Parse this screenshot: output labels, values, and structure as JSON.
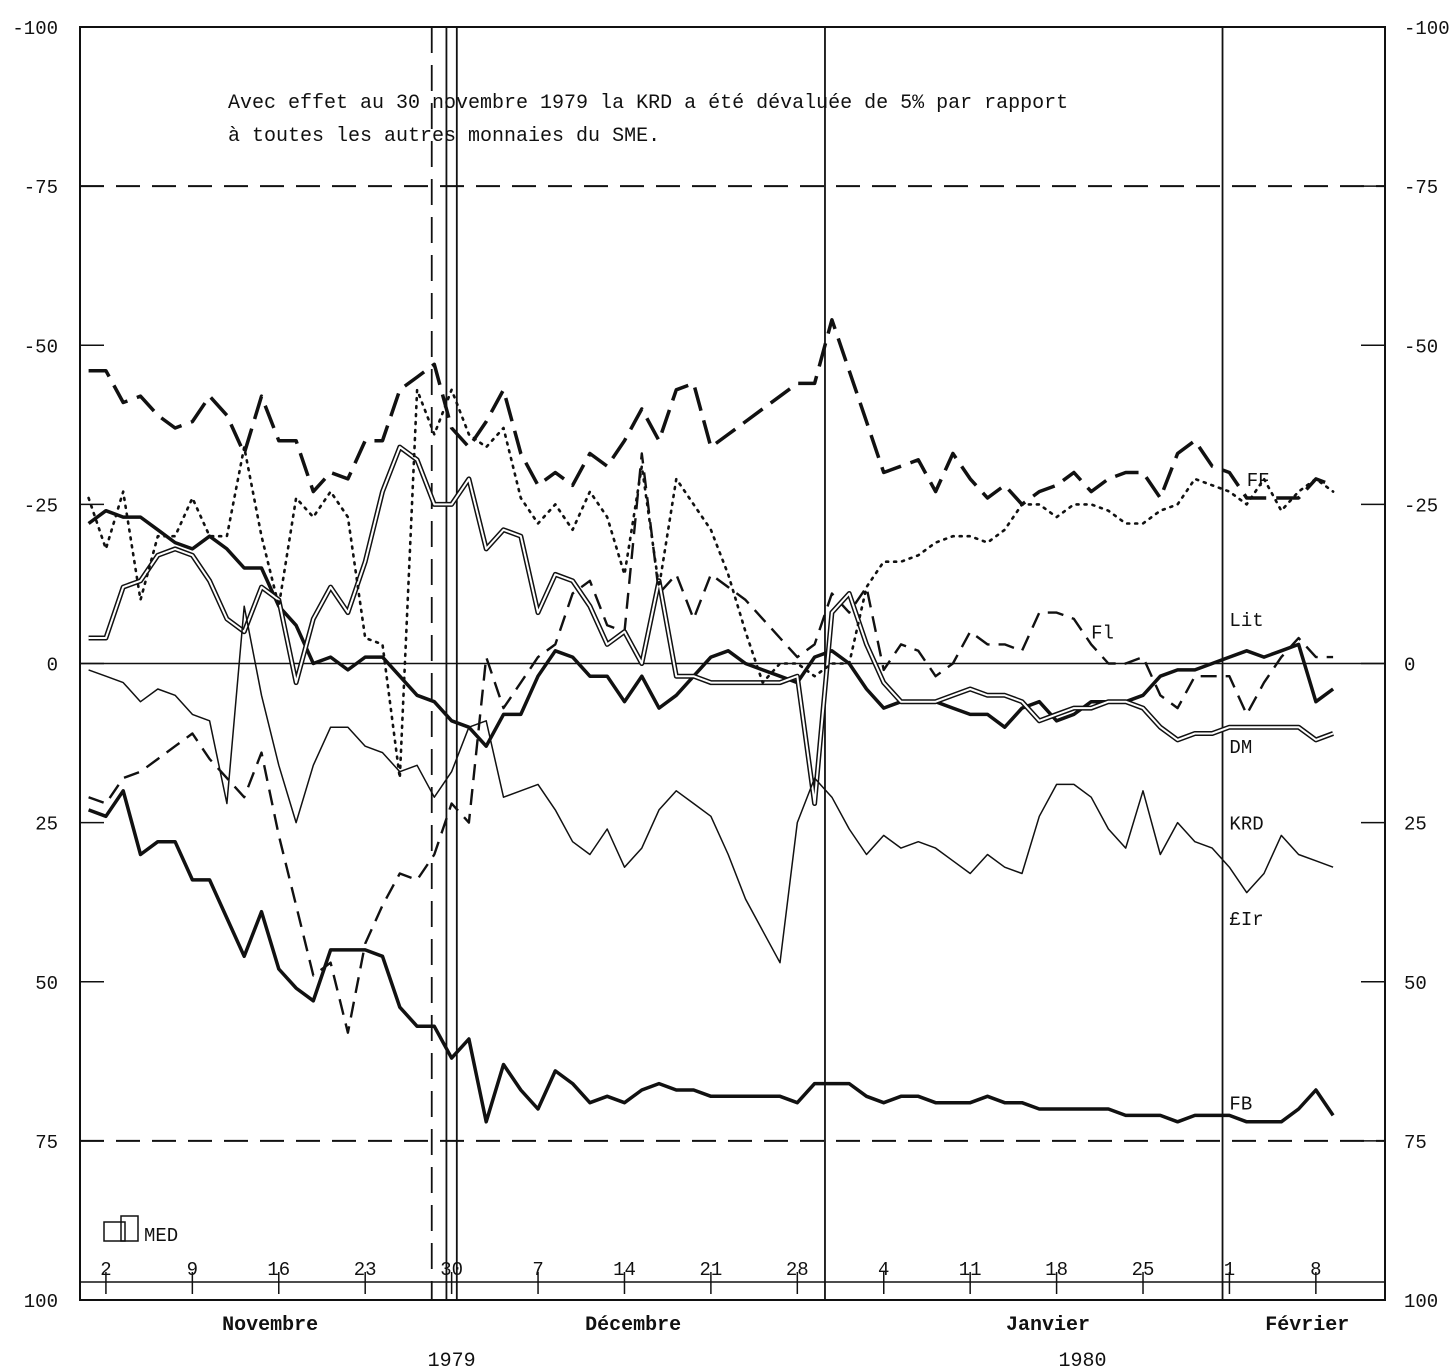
{
  "chart_data": {
    "type": "line",
    "annotation": [
      "Avec effet au 30 novembre 1979 la KRD a été dévaluée de 5% par rapport",
      "à toutes les autres monnaies du SME."
    ],
    "yaxis": {
      "ylim": [
        -100,
        100
      ],
      "inverted": true,
      "ticks": [
        -100,
        -75,
        -50,
        -25,
        0,
        25,
        50,
        75,
        100
      ],
      "tick_labels": [
        "-100",
        "-75",
        "-50",
        "-25",
        "0",
        "25",
        "50",
        "75",
        "100"
      ]
    },
    "xaxis": {
      "xlim": [
        -0.5,
        75
      ],
      "day_ticks": [
        {
          "x": 1,
          "label": "2"
        },
        {
          "x": 6,
          "label": "9"
        },
        {
          "x": 11,
          "label": "16"
        },
        {
          "x": 16,
          "label": "23"
        },
        {
          "x": 21,
          "label": "30"
        },
        {
          "x": 26,
          "label": "7"
        },
        {
          "x": 31,
          "label": "14"
        },
        {
          "x": 36,
          "label": "21"
        },
        {
          "x": 41,
          "label": "28"
        },
        {
          "x": 46,
          "label": "4"
        },
        {
          "x": 51,
          "label": "11"
        },
        {
          "x": 56,
          "label": "18"
        },
        {
          "x": 61,
          "label": "25"
        },
        {
          "x": 66,
          "label": "1"
        },
        {
          "x": 71,
          "label": "8"
        }
      ],
      "months": [
        {
          "label": "Novembre",
          "x": 10.5
        },
        {
          "label": "Décembre",
          "x": 31.5
        },
        {
          "label": "Janvier",
          "x": 55.5
        },
        {
          "label": "Février",
          "x": 70.5
        }
      ],
      "years": [
        {
          "label": "1979",
          "x": 21
        },
        {
          "label": "1980",
          "x": 57.5
        }
      ]
    },
    "reference_lines": {
      "dashed_y": [
        -75,
        75
      ],
      "solid_y": [
        0
      ],
      "dashed_x": [
        19.85
      ],
      "double_x": [
        20.7,
        21.3
      ],
      "solid_x": [
        42.6,
        65.6
      ]
    },
    "logo_text": "MED",
    "grid": false,
    "legend": "inline labels at right ends",
    "series": [
      {
        "name": "FF",
        "style": "thick-dashed",
        "label_pos": [
          67,
          -29
        ],
        "x": [
          0,
          1,
          2,
          3,
          4,
          5,
          6,
          7,
          8,
          9,
          10,
          11,
          12,
          13,
          14,
          15,
          16,
          17,
          18,
          19,
          20,
          21,
          22,
          23,
          24,
          25,
          26,
          27,
          28,
          29,
          30,
          31,
          32,
          33,
          34,
          35,
          36,
          37,
          38,
          39,
          40,
          41,
          42,
          43,
          44,
          45,
          46,
          47,
          48,
          49,
          50,
          51,
          52,
          53,
          54,
          55,
          56,
          57,
          58,
          59,
          60,
          61,
          62,
          63,
          64,
          65,
          66,
          67,
          68,
          69,
          70,
          71,
          72
        ],
        "y": [
          -46,
          -46,
          -41,
          -42,
          -39,
          -37,
          -38,
          -42,
          -39,
          -33,
          -42,
          -35,
          -35,
          -27,
          -30,
          -29,
          -35,
          -35,
          -43,
          -45,
          -47,
          -37,
          -34,
          -38,
          -43,
          -33,
          -28,
          -30,
          -28,
          -33,
          -31,
          -35,
          -40,
          -35,
          -43,
          -44,
          -34,
          -36,
          -38,
          -40,
          -42,
          -44,
          -44,
          -54,
          -46,
          -38,
          -30,
          -31,
          -32,
          -27,
          -33,
          -29,
          -26,
          -28,
          -25,
          -27,
          -28,
          -30,
          -27,
          -29,
          -30,
          -30,
          -26,
          -33,
          -35,
          -31,
          -30,
          -26,
          -26,
          -26,
          -26,
          -29,
          -28
        ]
      },
      {
        "name": "Fl",
        "style": "dashed",
        "label_pos": [
          58,
          -5
        ],
        "x": [
          0,
          1,
          2,
          3,
          4,
          5,
          6,
          7,
          8,
          9,
          10,
          11,
          12,
          13,
          14,
          15,
          16,
          17,
          18,
          19,
          20,
          21,
          22,
          23,
          24,
          25,
          26,
          27,
          28,
          29,
          30,
          31,
          32,
          33,
          34,
          35,
          36,
          37,
          38,
          39,
          40,
          41,
          42,
          43,
          44,
          45,
          46,
          47,
          48,
          49,
          50,
          51,
          52,
          53,
          54,
          55,
          56,
          57,
          58,
          59,
          60,
          61,
          62,
          63,
          64,
          65,
          66,
          67,
          68,
          69,
          70,
          71,
          72
        ],
        "y": [
          21,
          22,
          18,
          17,
          15,
          13,
          11,
          15,
          18,
          21,
          14,
          27,
          38,
          49,
          47,
          58,
          44,
          38,
          33,
          34,
          30,
          22,
          25,
          -1,
          7,
          3,
          -1,
          -3,
          -11,
          -13,
          -6,
          -5,
          -33,
          -11,
          -14,
          -7,
          -14,
          -12,
          -10,
          -7,
          -4,
          -1,
          -3,
          -11,
          -8,
          -12,
          1,
          -3,
          -2,
          2,
          0,
          -5,
          -3,
          -3,
          -2,
          -8,
          -8,
          -7,
          -3,
          0,
          0,
          -1,
          5,
          7,
          2,
          2,
          2,
          8,
          3,
          -1,
          -4,
          -1,
          -1
        ]
      },
      {
        "name": "Lit",
        "style": "thick-solid",
        "label_pos": [
          66,
          -7
        ],
        "x": [
          0,
          1,
          2,
          3,
          4,
          5,
          6,
          7,
          8,
          9,
          10,
          11,
          12,
          13,
          14,
          15,
          16,
          17,
          18,
          19,
          20,
          21,
          22,
          23,
          24,
          25,
          26,
          27,
          28,
          29,
          30,
          31,
          32,
          33,
          34,
          35,
          36,
          37,
          38,
          39,
          40,
          41,
          42,
          43,
          44,
          45,
          46,
          47,
          48,
          49,
          50,
          51,
          52,
          53,
          54,
          55,
          56,
          57,
          58,
          59,
          60,
          61,
          62,
          63,
          64,
          65,
          66,
          67,
          68,
          69,
          70,
          71,
          72
        ],
        "y": [
          -22,
          -24,
          -23,
          -23,
          -21,
          -19,
          -18,
          -20,
          -18,
          -15,
          -15,
          -9,
          -6,
          0,
          -1,
          1,
          -1,
          -1,
          2,
          5,
          6,
          9,
          10,
          13,
          8,
          8,
          2,
          -2,
          -1,
          2,
          2,
          6,
          2,
          7,
          5,
          2,
          -1,
          -2,
          0,
          1,
          2,
          3,
          -1,
          -2,
          0,
          4,
          7,
          6,
          6,
          6,
          7,
          8,
          8,
          10,
          7,
          6,
          9,
          8,
          6,
          6,
          6,
          5,
          2,
          1,
          1,
          0,
          -1,
          -2,
          -1,
          -2,
          -3,
          6,
          4
        ]
      },
      {
        "name": "DM",
        "style": "double",
        "label_pos": [
          66,
          13
        ],
        "x": [
          0,
          1,
          2,
          3,
          4,
          5,
          6,
          7,
          8,
          9,
          10,
          11,
          12,
          13,
          14,
          15,
          16,
          17,
          18,
          19,
          20,
          21,
          22,
          23,
          24,
          25,
          26,
          27,
          28,
          29,
          30,
          31,
          32,
          33,
          34,
          35,
          36,
          37,
          38,
          39,
          40,
          41,
          42,
          43,
          44,
          45,
          46,
          47,
          48,
          49,
          50,
          51,
          52,
          53,
          54,
          55,
          56,
          57,
          58,
          59,
          60,
          61,
          62,
          63,
          64,
          65,
          66,
          67,
          68,
          69,
          70,
          71,
          72
        ],
        "y": [
          -4,
          -4,
          -12,
          -13,
          -17,
          -18,
          -17,
          -13,
          -7,
          -5,
          -12,
          -10,
          3,
          -7,
          -12,
          -8,
          -16,
          -27,
          -34,
          -32,
          -25,
          -25,
          -29,
          -18,
          -21,
          -20,
          -8,
          -14,
          -13,
          -9,
          -3,
          -5,
          0,
          -13,
          2,
          2,
          3,
          3,
          3,
          3,
          3,
          2,
          22,
          -8,
          -11,
          -3,
          3,
          6,
          6,
          6,
          5,
          4,
          5,
          5,
          6,
          9,
          8,
          7,
          7,
          6,
          6,
          7,
          10,
          12,
          11,
          11,
          10,
          10,
          10,
          10,
          10,
          12,
          11
        ]
      },
      {
        "name": "KRD",
        "style": "dotted",
        "label_pos": [
          66,
          25
        ],
        "x": [
          0,
          1,
          2,
          3,
          4,
          5,
          6,
          7,
          8,
          9,
          10,
          11,
          12,
          13,
          14,
          15,
          16,
          17,
          18,
          19,
          20,
          21,
          22,
          23,
          24,
          25,
          26,
          27,
          28,
          29,
          30,
          31,
          32,
          33,
          34,
          35,
          36,
          37,
          38,
          39,
          40,
          41,
          42,
          43,
          44,
          45,
          46,
          47,
          48,
          49,
          50,
          51,
          52,
          53,
          54,
          55,
          56,
          57,
          58,
          59,
          60,
          61,
          62,
          63,
          64,
          65,
          66,
          67,
          68,
          69,
          70,
          71,
          72
        ],
        "y": [
          -26,
          -18,
          -27,
          -10,
          -20,
          -20,
          -26,
          -20,
          -20,
          -34,
          -20,
          -9,
          -26,
          -23,
          -27,
          -23,
          -4,
          -3,
          18,
          -43,
          -36,
          -43,
          -36,
          -34,
          -37,
          -26,
          -22,
          -25,
          -21,
          -27,
          -23,
          -14,
          -31,
          -12,
          -29,
          -25,
          -21,
          -14,
          -5,
          3,
          0,
          0,
          2,
          0,
          0,
          -12,
          -16,
          -16,
          -17,
          -19,
          -20,
          -20,
          -19,
          -21,
          -25,
          -25,
          -23,
          -25,
          -25,
          -24,
          -22,
          -22,
          -24,
          -25,
          -29,
          -28,
          -27,
          -25,
          -29,
          -24,
          -27,
          -29,
          -27
        ]
      },
      {
        "name": "£Ir",
        "style": "thin-solid",
        "label_pos": [
          66,
          40
        ],
        "x": [
          0,
          1,
          2,
          3,
          4,
          5,
          6,
          7,
          8,
          9,
          10,
          11,
          12,
          13,
          14,
          15,
          16,
          17,
          18,
          19,
          20,
          21,
          22,
          23,
          24,
          25,
          26,
          27,
          28,
          29,
          30,
          31,
          32,
          33,
          34,
          35,
          36,
          37,
          38,
          39,
          40,
          41,
          42,
          43,
          44,
          45,
          46,
          47,
          48,
          49,
          50,
          51,
          52,
          53,
          54,
          55,
          56,
          57,
          58,
          59,
          60,
          61,
          62,
          63,
          64,
          65,
          66,
          67,
          68,
          69,
          70,
          71,
          72
        ],
        "y": [
          1,
          2,
          3,
          6,
          4,
          5,
          8,
          9,
          22,
          -9,
          5,
          16,
          25,
          16,
          10,
          10,
          13,
          14,
          17,
          16,
          21,
          17,
          10,
          9,
          21,
          20,
          19,
          23,
          28,
          30,
          26,
          32,
          29,
          23,
          20,
          22,
          24,
          30,
          37,
          42,
          47,
          25,
          18,
          21,
          26,
          30,
          27,
          29,
          28,
          29,
          31,
          33,
          30,
          32,
          33,
          24,
          19,
          19,
          21,
          26,
          29,
          20,
          30,
          25,
          28,
          29,
          32,
          36,
          33,
          27,
          30,
          31,
          32
        ]
      },
      {
        "name": "FB",
        "style": "thick-solid",
        "label_pos": [
          66,
          69
        ],
        "x": [
          0,
          1,
          2,
          3,
          4,
          5,
          6,
          7,
          8,
          9,
          10,
          11,
          12,
          13,
          14,
          15,
          16,
          17,
          18,
          19,
          20,
          21,
          22,
          23,
          24,
          25,
          26,
          27,
          28,
          29,
          30,
          31,
          32,
          33,
          34,
          35,
          36,
          37,
          38,
          39,
          40,
          41,
          42,
          43,
          44,
          45,
          46,
          47,
          48,
          49,
          50,
          51,
          52,
          53,
          54,
          55,
          56,
          57,
          58,
          59,
          60,
          61,
          62,
          63,
          64,
          65,
          66,
          67,
          68,
          69,
          70,
          71,
          72
        ],
        "y": [
          23,
          24,
          20,
          30,
          28,
          28,
          34,
          34,
          40,
          46,
          39,
          48,
          51,
          53,
          45,
          45,
          45,
          46,
          54,
          57,
          57,
          62,
          59,
          72,
          63,
          67,
          70,
          64,
          66,
          69,
          68,
          69,
          67,
          66,
          67,
          67,
          68,
          68,
          68,
          68,
          68,
          69,
          66,
          66,
          66,
          68,
          69,
          68,
          68,
          69,
          69,
          69,
          68,
          69,
          69,
          70,
          70,
          70,
          70,
          70,
          71,
          71,
          71,
          72,
          71,
          71,
          71,
          72,
          72,
          72,
          70,
          67,
          71
        ]
      }
    ]
  }
}
